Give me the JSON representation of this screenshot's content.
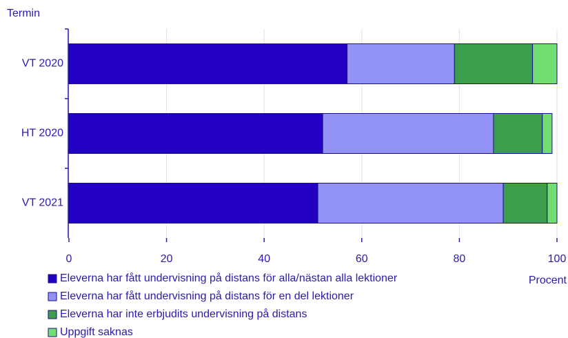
{
  "chart_data": {
    "type": "stacked-barh",
    "y_label": "Termin",
    "x_label": "Procent",
    "categories": [
      "VT 2020",
      "HT 2020",
      "VT 2021"
    ],
    "series": [
      {
        "name": "Eleverna har fått undervisning på distans för alla/nästan alla lektioner",
        "color": "#2400c2",
        "values": [
          57,
          52,
          51
        ]
      },
      {
        "name": "Eleverna har fått undervisning på distans för en del lektioner",
        "color": "#9393f5",
        "values": [
          22,
          35,
          38
        ]
      },
      {
        "name": "Eleverna har inte erbjudits undervisning på distans",
        "color": "#3c9e4c",
        "values": [
          16,
          10,
          9
        ]
      },
      {
        "name": "Uppgift saknas",
        "color": "#72de72",
        "values": [
          5,
          2,
          2
        ]
      }
    ],
    "xlim": [
      0,
      100
    ],
    "xticks": [
      0,
      20,
      40,
      60,
      80,
      100
    ],
    "grid": true,
    "legend": "bottom-left"
  }
}
